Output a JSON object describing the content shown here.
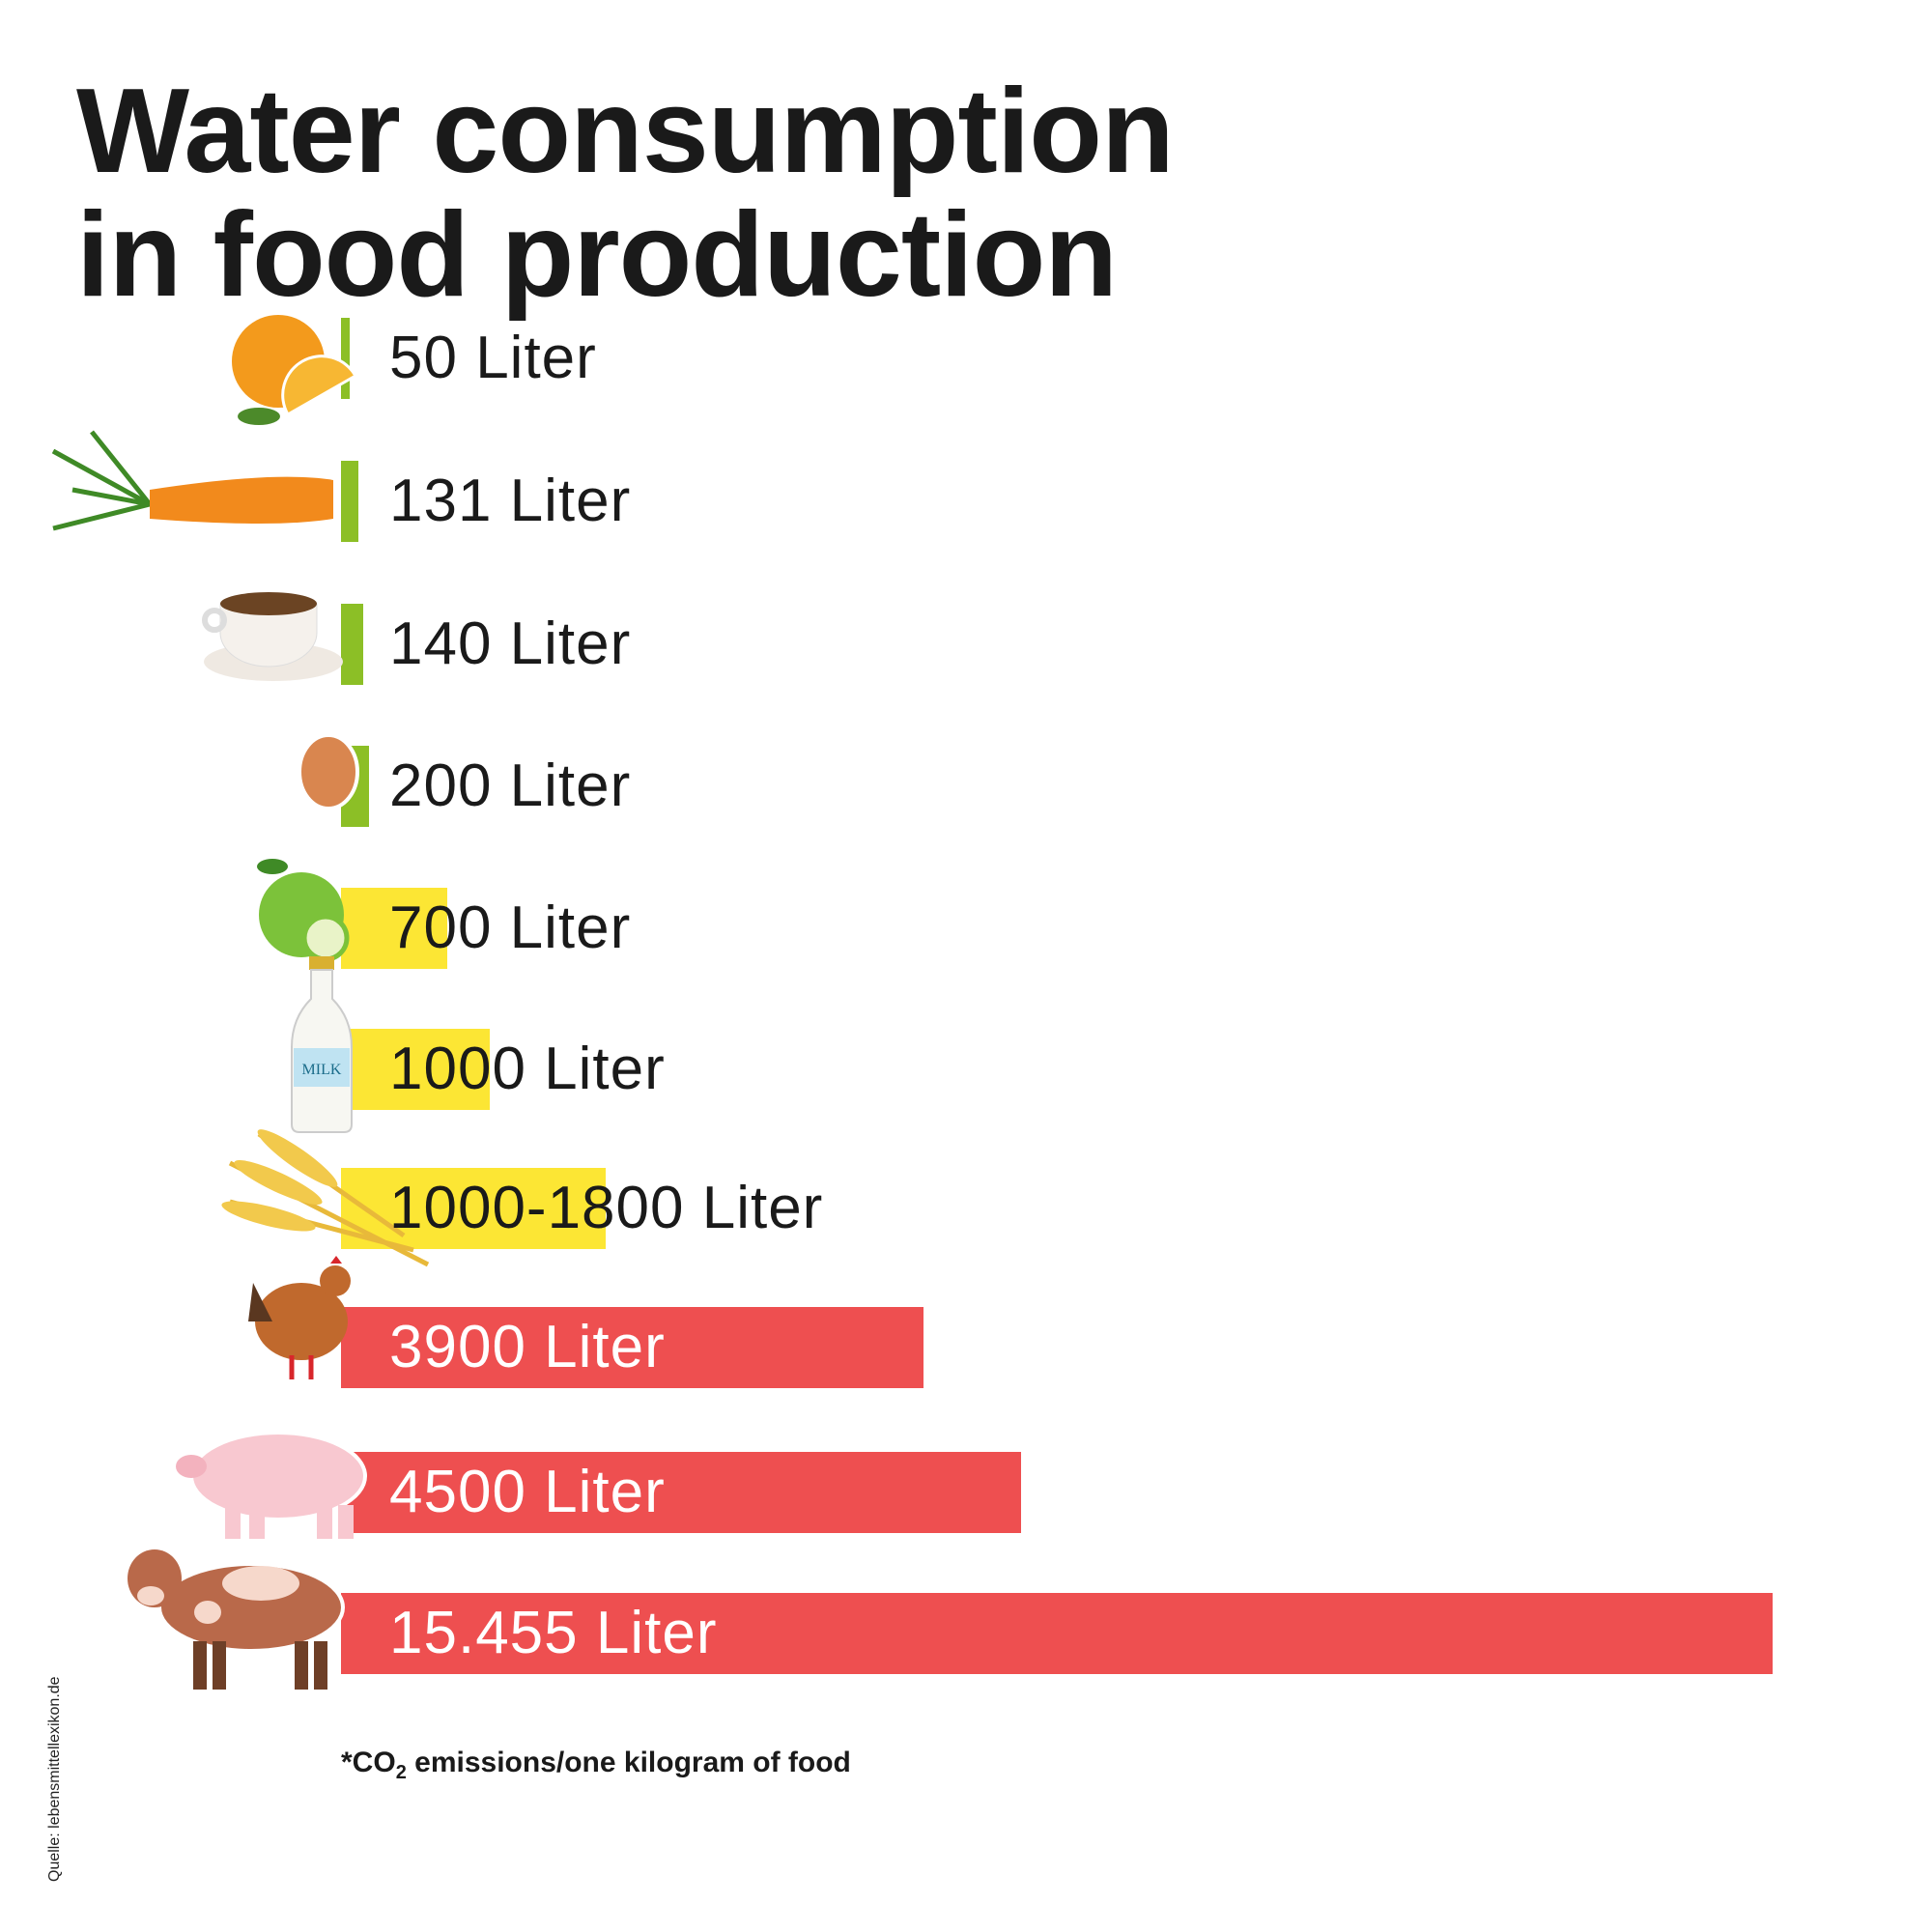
{
  "title_line1": "Water consumption",
  "title_line2": "in food production",
  "footnote": {
    "prefix": "*CO",
    "sub": "2",
    "rest": " emissions/one kilogram of food"
  },
  "source": "Quelle: lebensmittellexikon.de",
  "colors": {
    "green": "#8cbf26",
    "yellow": "#fce634",
    "red": "#ee4f50"
  },
  "chart_data": {
    "type": "bar",
    "orientation": "horizontal",
    "unit": "Liter",
    "items": [
      {
        "icon": "orange-icon",
        "value": 50,
        "label": "50 Liter",
        "color": "#8cbf26"
      },
      {
        "icon": "carrot-icon",
        "value": 131,
        "label": "131 Liter",
        "color": "#8cbf26"
      },
      {
        "icon": "coffee-cup-icon",
        "value": 140,
        "label": "140 Liter",
        "color": "#8cbf26"
      },
      {
        "icon": "egg-icon",
        "value": 200,
        "label": "200 Liter",
        "color": "#8cbf26"
      },
      {
        "icon": "apple-icon",
        "value": 700,
        "label": "700 Liter",
        "color": "#fce634"
      },
      {
        "icon": "milk-bottle-icon",
        "value": 1000,
        "label": "1000 Liter",
        "color": "#fce634",
        "icon_text": "MILK"
      },
      {
        "icon": "wheat-icon",
        "value": [
          1000,
          1800
        ],
        "label": "1000-1800 Liter",
        "color": "#fce634"
      },
      {
        "icon": "chicken-icon",
        "value": 3900,
        "label": "3900 Liter",
        "color": "#ee4f50"
      },
      {
        "icon": "pig-icon",
        "value": 4500,
        "label": "4500 Liter",
        "color": "#ee4f50"
      },
      {
        "icon": "cow-icon",
        "value": 15455,
        "label": "15.455 Liter",
        "color": "#ee4f50"
      }
    ]
  }
}
